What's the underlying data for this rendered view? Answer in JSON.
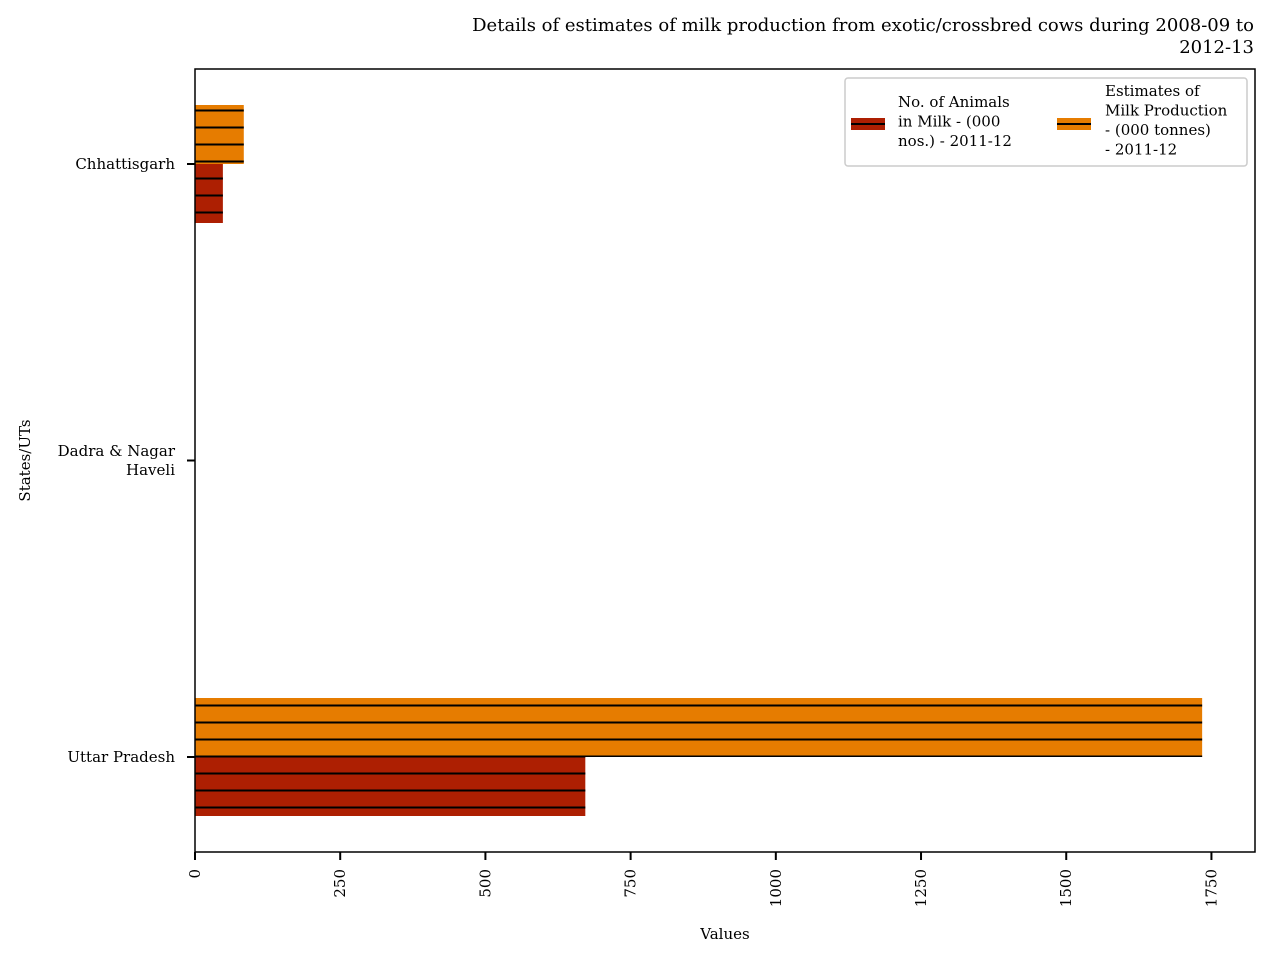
{
  "chart_data": {
    "type": "bar",
    "orientation": "horizontal",
    "title": "Details of estimates of milk production from exotic/crossbred cows during 2008-09 to 2012-13",
    "title_lines": [
      "Details of estimates of milk production from exotic/crossbred cows during 2008-09 to",
      "2012-13"
    ],
    "xlabel": "Values",
    "ylabel": "States/UTs",
    "categories": [
      {
        "name": "Chhattisgarh",
        "lines": [
          "Chhattisgarh"
        ]
      },
      {
        "name": "Dadra & Nagar Haveli",
        "lines": [
          "Dadra & Nagar",
          "Haveli"
        ]
      },
      {
        "name": "Uttar Pradesh",
        "lines": [
          "Uttar Pradesh"
        ]
      }
    ],
    "series": [
      {
        "name": "No. of Animals in Milk - (000 nos.) - 2011-12",
        "legend_lines": [
          "No. of Animals",
          "in Milk - (000",
          "nos.) - 2011-12"
        ],
        "color": "#ad1f02",
        "hatch": "horizontal-lines",
        "values": [
          48,
          0,
          672
        ]
      },
      {
        "name": "Estimates of Milk Production - (000 tonnes) - 2011-12",
        "legend_lines": [
          "Estimates of",
          "Milk Production",
          "- (000 tonnes)",
          "- 2011-12"
        ],
        "color": "#e67c00",
        "hatch": "horizontal-lines",
        "values": [
          84,
          0,
          1734
        ]
      }
    ],
    "xlim": [
      0,
      1825
    ],
    "xticks": [
      0,
      250,
      500,
      750,
      1000,
      1250,
      1500,
      1750
    ],
    "xtick_rotation": "vertical",
    "legend_placement": "top-right",
    "grid": false
  }
}
